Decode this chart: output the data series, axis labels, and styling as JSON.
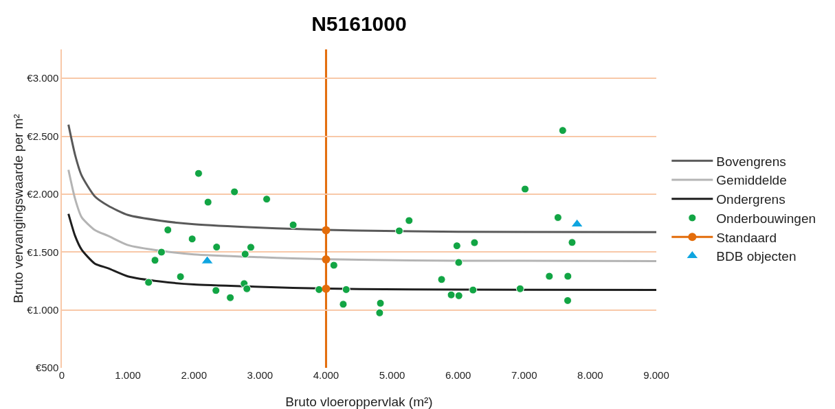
{
  "chart_data": {
    "type": "line",
    "title": "N5161000",
    "xlabel": "Bruto vloeroppervlak (m²)",
    "ylabel": "Bruto vervangingswaarde per m²",
    "xlim": [
      0,
      9000
    ],
    "ylim": [
      500,
      3250
    ],
    "xticks": [
      0,
      {
        "value": 1000,
        "label": "1.000"
      },
      {
        "value": 2000,
        "label": "2.000"
      },
      {
        "value": 3000,
        "label": "3.000"
      },
      {
        "value": 4000,
        "label": "4.000"
      },
      {
        "value": 5000,
        "label": "5.000"
      },
      {
        "value": 6000,
        "label": "6.000"
      },
      {
        "value": 7000,
        "label": "7.000"
      },
      {
        "value": 8000,
        "label": "8.000"
      },
      {
        "value": 9000,
        "label": "9.000"
      }
    ],
    "yticks": [
      {
        "value": 500,
        "label": "€500"
      },
      {
        "value": 1000,
        "label": "€1.000"
      },
      {
        "value": 1500,
        "label": "€1.500"
      },
      {
        "value": 2000,
        "label": "€2.000"
      },
      {
        "value": 2500,
        "label": "€2.500"
      },
      {
        "value": 3000,
        "label": "€3.000"
      }
    ],
    "grid": "y",
    "legend": "right",
    "ref_lines": [
      {
        "axis": "x",
        "value": 4000,
        "color": "#e36c0a"
      }
    ],
    "series": [
      {
        "name": "Bovengrens",
        "color": "#595959",
        "marker": "none",
        "x": [
          100,
          200,
          300,
          500,
          700,
          1000,
          1500,
          2000,
          3000,
          3500,
          4500,
          6000,
          9000
        ],
        "values": [
          2600,
          2340,
          2160,
          1980,
          1900,
          1820,
          1770,
          1740,
          1710,
          1700,
          1685,
          1675,
          1672
        ]
      },
      {
        "name": "Gemiddelde",
        "color": "#b4b4b4",
        "marker": "none",
        "x": [
          100,
          200,
          300,
          500,
          700,
          1000,
          1500,
          2000,
          3000,
          3500,
          4500,
          6000,
          9000
        ],
        "values": [
          2210,
          1960,
          1800,
          1690,
          1640,
          1560,
          1510,
          1480,
          1455,
          1445,
          1433,
          1425,
          1422
        ]
      },
      {
        "name": "Ondergrens",
        "color": "#1e1e1e",
        "marker": "none",
        "x": [
          100,
          200,
          300,
          500,
          700,
          1000,
          1500,
          2000,
          3000,
          3500,
          4500,
          6000,
          9000
        ],
        "values": [
          1830,
          1640,
          1520,
          1400,
          1360,
          1290,
          1245,
          1220,
          1200,
          1190,
          1180,
          1175,
          1172
        ]
      },
      {
        "name": "Onderbouwingen",
        "type": "scatter",
        "color": "#12a544",
        "marker": "circle",
        "x": [
          2070,
          2613,
          2213,
          3101,
          3502,
          1605,
          1973,
          2343,
          2861,
          2775,
          1508,
          1410,
          4118,
          1796,
          1313,
          2760,
          2801,
          2333,
          2550,
          3893,
          4305,
          4260,
          7583,
          7013,
          5257,
          5108,
          7511,
          5981,
          6247,
          7725,
          6008,
          5749,
          7380,
          7661,
          6225,
          6938,
          5895,
          6011,
          7658,
          4823,
          4811
        ],
        "values": [
          2179,
          2020,
          1931,
          1957,
          1734,
          1691,
          1613,
          1543,
          1541,
          1482,
          1499,
          1429,
          1386,
          1287,
          1238,
          1227,
          1183,
          1168,
          1106,
          1176,
          1176,
          1049,
          2550,
          2044,
          1772,
          1683,
          1798,
          1554,
          1581,
          1583,
          1410,
          1263,
          1291,
          1291,
          1172,
          1183,
          1130,
          1123,
          1081,
          1058,
          975
        ]
      },
      {
        "name": "Standaard",
        "color": "#e36c0a",
        "marker": "circle",
        "x": [
          4000,
          4000,
          4000
        ],
        "values": [
          1183,
          1437,
          1688
        ]
      },
      {
        "name": "BDB objecten",
        "type": "scatter",
        "color": "#0ea5e0",
        "marker": "triangle",
        "x": [
          2201,
          7800
        ],
        "values": [
          1422,
          1740
        ]
      }
    ]
  }
}
